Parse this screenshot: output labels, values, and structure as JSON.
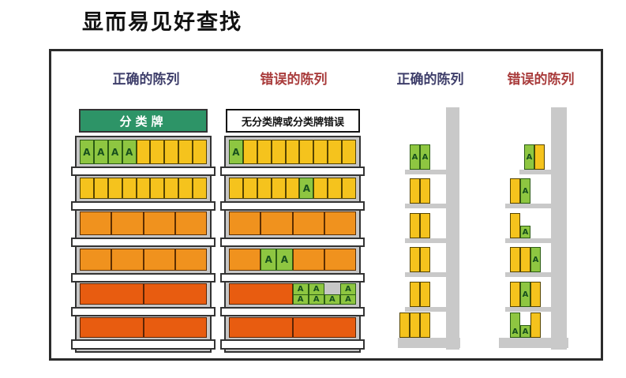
{
  "title": "显而易见好查找",
  "box_label": "A",
  "palette": {
    "frame": "#2b2b2b",
    "shelf_gray": "#c7c7c7",
    "post_gray": "#c9c9c9",
    "divider_white": "#ffffff",
    "box_yellow": "#f5c31d",
    "box_orange": "#f0921e",
    "box_dark_orange": "#e85c10",
    "box_green": "#8ec641",
    "sign_green": "#2d9467",
    "label_green_dark": "#174f1d",
    "header_navy": "#3f3f6b",
    "header_red": "#a93c3c"
  },
  "columns": [
    {
      "kind": "wide",
      "header": "正确的陈列",
      "tone": "navy",
      "sign": {
        "style": "category",
        "label": "分类牌"
      },
      "rows": [
        {
          "boxes": [
            [
              "g",
              1
            ],
            [
              "g",
              1
            ],
            [
              "g",
              1
            ],
            [
              "g",
              1
            ],
            [
              "y",
              1
            ],
            [
              "y",
              1
            ],
            [
              "y",
              1
            ],
            [
              "y",
              1
            ],
            [
              "y",
              1
            ]
          ]
        },
        {
          "boxes": [
            [
              "y",
              1
            ],
            [
              "y",
              1
            ],
            [
              "y",
              1
            ],
            [
              "y",
              1
            ],
            [
              "y",
              1
            ],
            [
              "y",
              1
            ],
            [
              "y",
              1
            ],
            [
              "y",
              1
            ],
            [
              "y",
              1
            ]
          ]
        },
        {
          "boxes": [
            [
              "o",
              1
            ],
            [
              "o",
              1
            ],
            [
              "o",
              1
            ],
            [
              "o",
              1
            ]
          ]
        },
        {
          "boxes": [
            [
              "o",
              1
            ],
            [
              "o",
              1
            ],
            [
              "o",
              1
            ],
            [
              "o",
              1
            ]
          ]
        },
        {
          "boxes": [
            [
              "d",
              1
            ],
            [
              "d",
              1
            ]
          ]
        },
        {
          "boxes": [
            [
              "d",
              1
            ],
            [
              "d",
              1
            ]
          ]
        }
      ]
    },
    {
      "kind": "wide",
      "header": "错误的陈列",
      "tone": "red",
      "sign": {
        "style": "error",
        "label": "无分类牌或分类牌错误"
      },
      "rows": [
        {
          "boxes": [
            [
              "g",
              1
            ],
            [
              "y",
              1
            ],
            [
              "y",
              1
            ],
            [
              "y",
              1
            ],
            [
              "y",
              1
            ],
            [
              "y",
              1
            ],
            [
              "y",
              1
            ],
            [
              "y",
              1
            ],
            [
              "y",
              1
            ]
          ]
        },
        {
          "boxes": [
            [
              "y",
              1
            ],
            [
              "y",
              1
            ],
            [
              "y",
              1
            ],
            [
              "y",
              1
            ],
            [
              "y",
              1
            ],
            [
              "g",
              1
            ],
            [
              "y",
              1
            ],
            [
              "y",
              1
            ],
            [
              "y",
              1
            ]
          ]
        },
        {
          "boxes": [
            [
              "o",
              1
            ],
            [
              "o",
              1
            ],
            [
              "o",
              1
            ],
            [
              "o",
              1
            ]
          ]
        },
        {
          "boxes": [
            [
              "o",
              2
            ],
            [
              "g",
              1
            ],
            [
              "g",
              1
            ],
            [
              "o",
              2
            ],
            [
              "o",
              2
            ]
          ]
        },
        {
          "pile": {
            "left": "d",
            "top": [
              "g",
              "g",
              null,
              "g"
            ],
            "bottom": [
              "g",
              "g",
              "g",
              "g"
            ]
          }
        },
        {
          "boxes": [
            [
              "d",
              1
            ],
            [
              "d",
              1
            ]
          ]
        }
      ]
    },
    {
      "kind": "narrow",
      "header": "正确的陈列",
      "tone": "navy",
      "levels": [
        {
          "boxes": [
            {
              "t": "g"
            },
            {
              "t": "g"
            }
          ]
        },
        {
          "boxes": [
            {
              "t": "y"
            },
            {
              "t": "y"
            }
          ]
        },
        {
          "boxes": [
            {
              "t": "y"
            },
            {
              "t": "y"
            }
          ]
        },
        {
          "boxes": [
            {
              "t": "y"
            },
            {
              "t": "y"
            }
          ]
        },
        {
          "boxes": [
            {
              "t": "y"
            },
            {
              "t": "y"
            }
          ]
        },
        {
          "boxes": [
            {
              "t": "y"
            },
            {
              "t": "y"
            },
            {
              "t": "y"
            }
          ]
        }
      ]
    },
    {
      "kind": "narrow",
      "header": "错误的陈列",
      "tone": "red",
      "levels": [
        {
          "boxes": [
            {
              "t": "g"
            },
            {
              "t": "y"
            }
          ],
          "align": "right"
        },
        {
          "boxes": [
            {
              "t": "y"
            },
            {
              "t": "g"
            }
          ]
        },
        {
          "boxes": [
            {
              "t": "y"
            },
            {
              "t": "g",
              "half": true
            }
          ]
        },
        {
          "boxes": [
            {
              "t": "y"
            },
            {
              "t": "y"
            },
            {
              "t": "g"
            }
          ]
        },
        {
          "boxes": [
            {
              "t": "y"
            },
            {
              "t": "g"
            },
            {
              "t": "y"
            }
          ]
        },
        {
          "boxes": [
            {
              "t": "g",
              "label_pos": "bottom"
            },
            {
              "t": "g",
              "half": true
            },
            {
              "t": "y"
            }
          ]
        }
      ]
    }
  ]
}
